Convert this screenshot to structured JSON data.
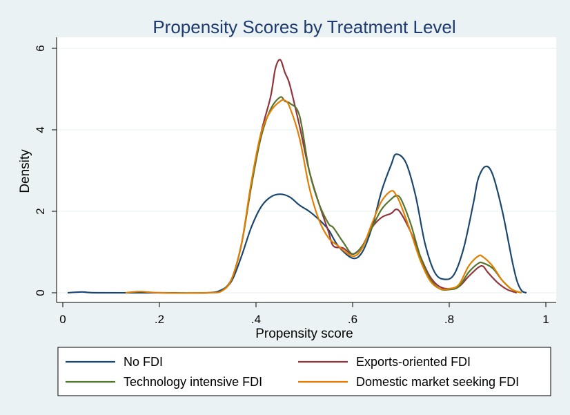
{
  "chart_data": {
    "type": "line",
    "title": "Propensity Scores by Treatment Level",
    "xlabel": "Propensity score",
    "ylabel": "Density",
    "xlim": [
      0,
      1
    ],
    "ylim": [
      0,
      6
    ],
    "x_ticks": [
      0,
      0.2,
      0.4,
      0.6,
      0.8,
      1
    ],
    "x_tick_labels": [
      "0",
      ".2",
      ".4",
      ".6",
      ".8",
      "1"
    ],
    "y_ticks": [
      0,
      2,
      4,
      6
    ],
    "y_tick_labels": [
      "0",
      "2",
      "4",
      "6"
    ],
    "grid": true,
    "legend_position": "bottom",
    "series": [
      {
        "name": "No FDI",
        "color": "#1a476f",
        "points": [
          [
            0.01,
            0
          ],
          [
            0.04,
            0.02
          ],
          [
            0.07,
            0
          ],
          [
            0.2,
            0
          ],
          [
            0.3,
            0
          ],
          [
            0.33,
            0.08
          ],
          [
            0.35,
            0.3
          ],
          [
            0.37,
            0.9
          ],
          [
            0.39,
            1.6
          ],
          [
            0.41,
            2.1
          ],
          [
            0.43,
            2.35
          ],
          [
            0.45,
            2.42
          ],
          [
            0.47,
            2.35
          ],
          [
            0.49,
            2.15
          ],
          [
            0.51,
            2.0
          ],
          [
            0.53,
            1.8
          ],
          [
            0.55,
            1.55
          ],
          [
            0.57,
            1.15
          ],
          [
            0.6,
            0.85
          ],
          [
            0.62,
            1.0
          ],
          [
            0.64,
            1.6
          ],
          [
            0.66,
            2.5
          ],
          [
            0.68,
            3.15
          ],
          [
            0.69,
            3.4
          ],
          [
            0.71,
            3.2
          ],
          [
            0.73,
            2.4
          ],
          [
            0.75,
            1.2
          ],
          [
            0.77,
            0.5
          ],
          [
            0.79,
            0.33
          ],
          [
            0.81,
            0.45
          ],
          [
            0.83,
            1.1
          ],
          [
            0.85,
            2.2
          ],
          [
            0.86,
            2.8
          ],
          [
            0.875,
            3.1
          ],
          [
            0.89,
            2.9
          ],
          [
            0.91,
            2.0
          ],
          [
            0.93,
            0.8
          ],
          [
            0.94,
            0.3
          ],
          [
            0.95,
            0.05
          ],
          [
            0.96,
            0
          ]
        ]
      },
      {
        "name": "Exports-oriented FDI",
        "color": "#90353b",
        "points": [
          [
            0.33,
            0.05
          ],
          [
            0.35,
            0.35
          ],
          [
            0.37,
            1.2
          ],
          [
            0.39,
            2.6
          ],
          [
            0.41,
            3.9
          ],
          [
            0.43,
            4.8
          ],
          [
            0.44,
            5.5
          ],
          [
            0.45,
            5.72
          ],
          [
            0.46,
            5.4
          ],
          [
            0.47,
            5.1
          ],
          [
            0.49,
            4.1
          ],
          [
            0.51,
            3.0
          ],
          [
            0.53,
            2.2
          ],
          [
            0.55,
            1.5
          ],
          [
            0.56,
            1.15
          ],
          [
            0.58,
            1.1
          ],
          [
            0.6,
            0.95
          ],
          [
            0.62,
            1.15
          ],
          [
            0.64,
            1.6
          ],
          [
            0.66,
            1.85
          ],
          [
            0.68,
            1.95
          ],
          [
            0.69,
            2.05
          ],
          [
            0.7,
            1.95
          ],
          [
            0.72,
            1.5
          ],
          [
            0.74,
            0.9
          ],
          [
            0.76,
            0.4
          ],
          [
            0.78,
            0.15
          ],
          [
            0.8,
            0.1
          ],
          [
            0.82,
            0.15
          ],
          [
            0.84,
            0.4
          ],
          [
            0.86,
            0.62
          ],
          [
            0.87,
            0.65
          ],
          [
            0.88,
            0.5
          ],
          [
            0.9,
            0.25
          ],
          [
            0.92,
            0.08
          ],
          [
            0.94,
            0
          ]
        ]
      },
      {
        "name": "Technology intensive FDI",
        "color": "#55752f",
        "points": [
          [
            0.33,
            0.05
          ],
          [
            0.35,
            0.35
          ],
          [
            0.37,
            1.2
          ],
          [
            0.39,
            2.6
          ],
          [
            0.41,
            3.8
          ],
          [
            0.43,
            4.5
          ],
          [
            0.45,
            4.8
          ],
          [
            0.46,
            4.7
          ],
          [
            0.47,
            4.65
          ],
          [
            0.49,
            4.35
          ],
          [
            0.51,
            3.0
          ],
          [
            0.53,
            2.2
          ],
          [
            0.55,
            1.7
          ],
          [
            0.56,
            1.6
          ],
          [
            0.58,
            1.25
          ],
          [
            0.6,
            0.95
          ],
          [
            0.62,
            1.15
          ],
          [
            0.64,
            1.6
          ],
          [
            0.66,
            2.05
          ],
          [
            0.68,
            2.3
          ],
          [
            0.69,
            2.38
          ],
          [
            0.7,
            2.3
          ],
          [
            0.72,
            1.7
          ],
          [
            0.74,
            0.9
          ],
          [
            0.76,
            0.35
          ],
          [
            0.78,
            0.1
          ],
          [
            0.8,
            0.08
          ],
          [
            0.82,
            0.15
          ],
          [
            0.84,
            0.5
          ],
          [
            0.86,
            0.72
          ],
          [
            0.87,
            0.73
          ],
          [
            0.89,
            0.6
          ],
          [
            0.91,
            0.3
          ],
          [
            0.93,
            0.08
          ],
          [
            0.95,
            0
          ]
        ]
      },
      {
        "name": "Domestic market seeking FDI",
        "color": "#e37e00",
        "points": [
          [
            0.13,
            0
          ],
          [
            0.16,
            0.03
          ],
          [
            0.2,
            0
          ],
          [
            0.3,
            0
          ],
          [
            0.33,
            0.05
          ],
          [
            0.35,
            0.35
          ],
          [
            0.37,
            1.2
          ],
          [
            0.39,
            2.7
          ],
          [
            0.41,
            3.9
          ],
          [
            0.43,
            4.45
          ],
          [
            0.45,
            4.7
          ],
          [
            0.46,
            4.72
          ],
          [
            0.47,
            4.55
          ],
          [
            0.49,
            3.8
          ],
          [
            0.51,
            2.6
          ],
          [
            0.53,
            1.8
          ],
          [
            0.55,
            1.35
          ],
          [
            0.57,
            1.15
          ],
          [
            0.6,
            0.9
          ],
          [
            0.62,
            1.1
          ],
          [
            0.64,
            1.7
          ],
          [
            0.66,
            2.25
          ],
          [
            0.68,
            2.5
          ],
          [
            0.69,
            2.4
          ],
          [
            0.7,
            2.15
          ],
          [
            0.72,
            1.5
          ],
          [
            0.74,
            0.8
          ],
          [
            0.76,
            0.3
          ],
          [
            0.78,
            0.1
          ],
          [
            0.8,
            0.1
          ],
          [
            0.82,
            0.2
          ],
          [
            0.84,
            0.65
          ],
          [
            0.86,
            0.9
          ],
          [
            0.87,
            0.88
          ],
          [
            0.89,
            0.65
          ],
          [
            0.91,
            0.3
          ],
          [
            0.93,
            0.08
          ],
          [
            0.95,
            0
          ]
        ]
      }
    ]
  }
}
